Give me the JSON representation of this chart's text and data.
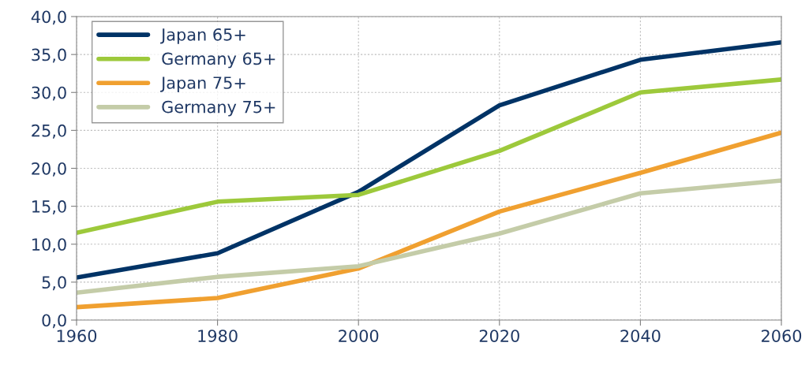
{
  "chart_data": {
    "type": "line",
    "x": [
      1960,
      1980,
      2000,
      2020,
      2040,
      2060
    ],
    "series": [
      {
        "name": "Japan 65+",
        "color": "#003366",
        "values": [
          5.6,
          8.8,
          16.9,
          28.3,
          34.3,
          36.6
        ]
      },
      {
        "name": "Germany 65+",
        "color": "#9dc93b",
        "values": [
          11.5,
          15.6,
          16.5,
          22.3,
          30.0,
          31.7
        ]
      },
      {
        "name": "Japan 75+",
        "color": "#f0a030",
        "values": [
          1.7,
          2.9,
          6.8,
          14.3,
          19.4,
          24.7
        ]
      },
      {
        "name": "Germany 75+",
        "color": "#c4cca8",
        "values": [
          3.6,
          5.7,
          7.1,
          11.4,
          16.7,
          18.4
        ]
      }
    ],
    "xlim": [
      1960,
      2060
    ],
    "xticks": [
      1960,
      1980,
      2000,
      2020,
      2040,
      2060
    ],
    "ylim": [
      0,
      40
    ],
    "yticks": [
      {
        "value": 0,
        "label": "0,0"
      },
      {
        "value": 5,
        "label": "5,0"
      },
      {
        "value": 10,
        "label": "10,0"
      },
      {
        "value": 15,
        "label": "15,0"
      },
      {
        "value": 20,
        "label": "20,0"
      },
      {
        "value": 25,
        "label": "25,0"
      },
      {
        "value": 30,
        "label": "30,0"
      },
      {
        "value": 35,
        "label": "35,0"
      },
      {
        "value": 40,
        "label": "40,0"
      }
    ],
    "grid": true,
    "legend": "top left",
    "marker": "none",
    "line_style": "solid"
  }
}
